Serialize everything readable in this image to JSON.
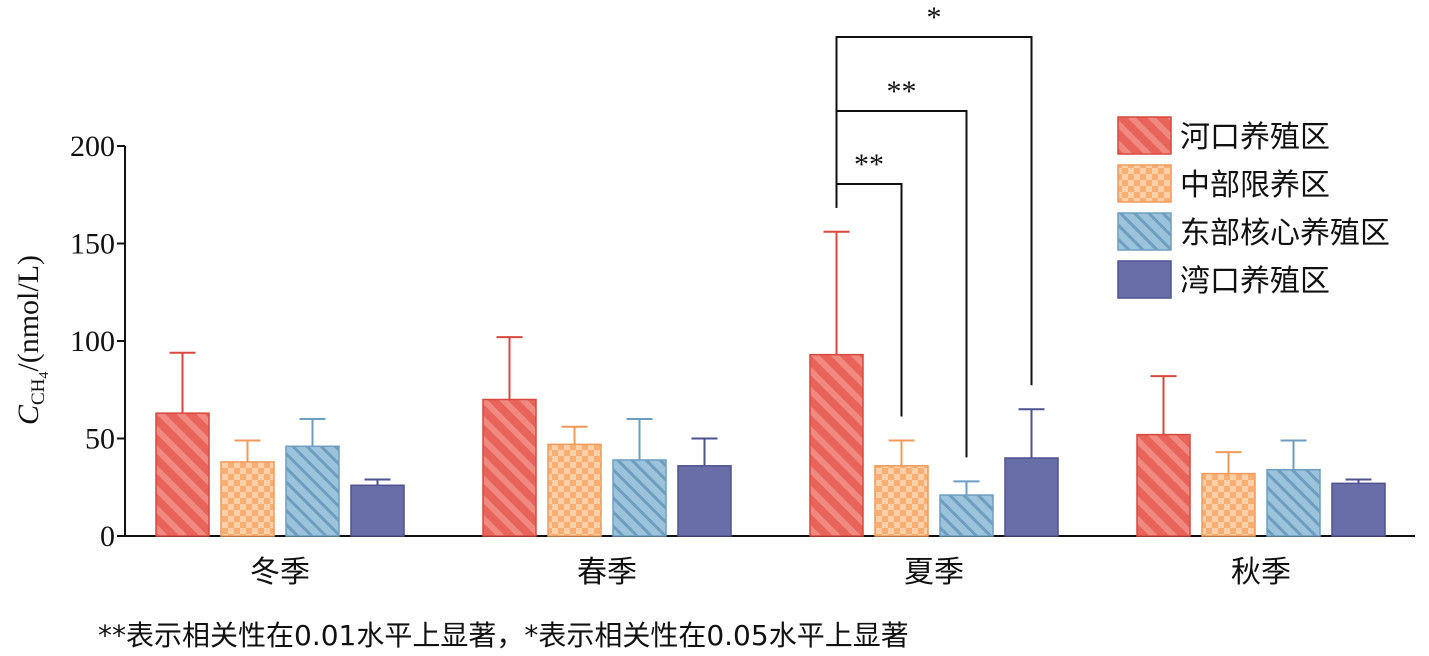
{
  "chart_data": {
    "type": "bar",
    "categories": [
      "冬季",
      "春季",
      "夏季",
      "秋季"
    ],
    "series": [
      {
        "name": "河口养殖区",
        "values": [
          63,
          70,
          93,
          52
        ],
        "errors": [
          31,
          32,
          63,
          30
        ],
        "color": "#e8645a",
        "pattern": "diagonal-stripes"
      },
      {
        "name": "中部限养区",
        "values": [
          38,
          47,
          36,
          32
        ],
        "errors": [
          11,
          9,
          13,
          11
        ],
        "color": "#f7ae73",
        "pattern": "checker"
      },
      {
        "name": "东部核心养殖区",
        "values": [
          46,
          39,
          21,
          34
        ],
        "errors": [
          14,
          21,
          7,
          15
        ],
        "color": "#8db8d4",
        "pattern": "diagonal-stripes"
      },
      {
        "name": "湾口养殖区",
        "values": [
          26,
          36,
          40,
          27
        ],
        "errors": [
          3,
          14,
          25,
          2
        ],
        "color": "#6a6ea8",
        "pattern": "solid"
      }
    ],
    "ylim": [
      0,
      200
    ],
    "yticks": [
      0,
      50,
      100,
      150,
      200
    ],
    "ylabel_main": "C",
    "ylabel_sub": "CH",
    "ylabel_subsub": "4",
    "ylabel_rest": "/(nmol/L)",
    "grid": false,
    "legend_position": "top-right",
    "significance": [
      {
        "category": "夏季",
        "from_series": 0,
        "to_series": 1,
        "label": "**"
      },
      {
        "category": "夏季",
        "from_series": 0,
        "to_series": 2,
        "label": "**"
      },
      {
        "category": "夏季",
        "from_series": 0,
        "to_series": 3,
        "label": "*"
      }
    ]
  },
  "footnote": "**表示相关性在0.01水平上显著，*表示相关性在0.05水平上显著"
}
